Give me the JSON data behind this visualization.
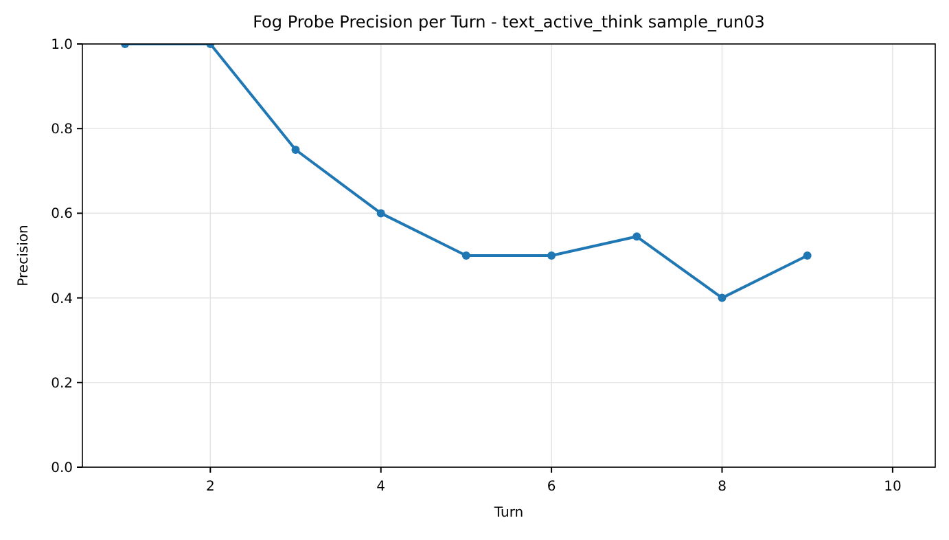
{
  "chart_data": {
    "type": "line",
    "title": "Fog Probe Precision per Turn - text_active_think sample_run03",
    "xlabel": "Turn",
    "ylabel": "Precision",
    "x": [
      1,
      2,
      3,
      4,
      5,
      6,
      7,
      8,
      9
    ],
    "series": [
      {
        "color": "#1f77b4",
        "values": [
          1,
          1,
          0.75,
          0.6,
          0.5,
          0.5,
          0.545,
          0.4,
          0.5
        ]
      }
    ],
    "xlim": [
      0.5,
      10.5
    ],
    "ylim": [
      0,
      1
    ],
    "xticks": [
      2,
      4,
      6,
      8,
      10
    ],
    "yticks": [
      {
        "value": 0,
        "label": "0.0"
      },
      {
        "value": 0.2,
        "label": "0.2"
      },
      {
        "value": 0.4,
        "label": "0.4"
      },
      {
        "value": 0.6,
        "label": "0.6"
      },
      {
        "value": 0.8,
        "label": "0.8"
      },
      {
        "value": 1,
        "label": "1.0"
      }
    ],
    "grid": true,
    "marker": "circle",
    "line_style": "solid"
  }
}
